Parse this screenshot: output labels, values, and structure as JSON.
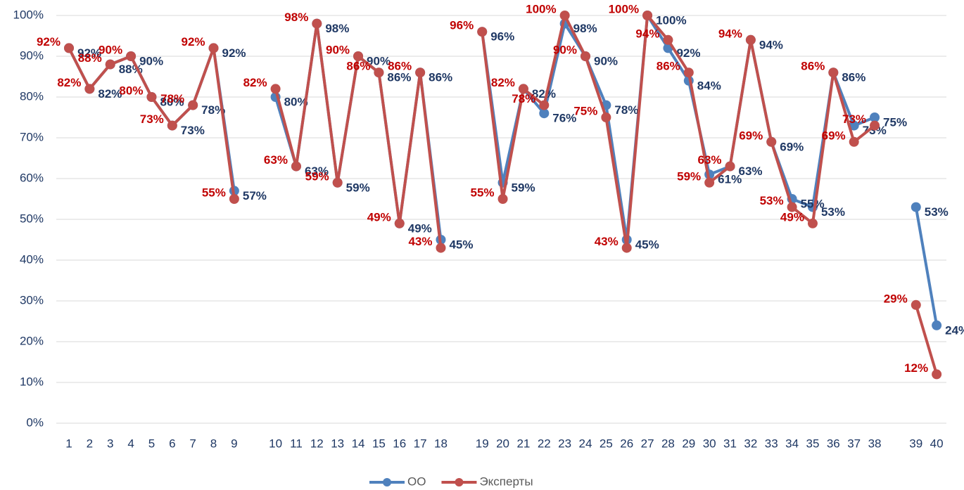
{
  "chart_data": {
    "type": "line",
    "categories": [
      "1",
      "2",
      "3",
      "4",
      "5",
      "6",
      "7",
      "8",
      "9",
      null,
      "10",
      "11",
      "12",
      "13",
      "14",
      "15",
      "16",
      "17",
      "18",
      null,
      "19",
      "20",
      "21",
      "22",
      "23",
      "24",
      "25",
      "26",
      "27",
      "28",
      "29",
      "30",
      "31",
      "32",
      "33",
      "34",
      "35",
      "36",
      "37",
      "38",
      null,
      "39",
      "40"
    ],
    "series": [
      {
        "name": "ОО",
        "color": "#4f81bd",
        "label_color": "#1f3864",
        "values": [
          92,
          82,
          88,
          90,
          80,
          73,
          78,
          92,
          57,
          null,
          80,
          63,
          98,
          59,
          90,
          86,
          49,
          86,
          45,
          null,
          96,
          59,
          82,
          76,
          98,
          90,
          78,
          45,
          100,
          92,
          84,
          61,
          63,
          94,
          69,
          55,
          53,
          86,
          73,
          75,
          null,
          53,
          24
        ],
        "value_labels": [
          "92%",
          "82%",
          "88%",
          "90%",
          "80%",
          "73%",
          "78%",
          "92%",
          "57%",
          null,
          "80%",
          "63%",
          "98%",
          "59%",
          "90%",
          "86%",
          "49%",
          "86%",
          "45%",
          null,
          "96%",
          "59%",
          "82%",
          "76%",
          "98%",
          "90%",
          "78%",
          "45%",
          "100%",
          "92%",
          "84%",
          "61%",
          "63%",
          "94%",
          "69%",
          "55%",
          "53%",
          "86%",
          "73%",
          "75%",
          null,
          "53%",
          "24%"
        ]
      },
      {
        "name": "Эксперты",
        "color": "#c0504d",
        "label_color": "#c00000",
        "values": [
          92,
          82,
          88,
          90,
          80,
          73,
          78,
          92,
          55,
          null,
          82,
          63,
          98,
          59,
          90,
          86,
          49,
          86,
          43,
          null,
          96,
          55,
          82,
          78,
          100,
          90,
          75,
          43,
          100,
          94,
          86,
          59,
          63,
          94,
          69,
          53,
          49,
          86,
          69,
          73,
          null,
          29,
          12
        ],
        "value_labels": [
          "92%",
          "82%",
          "88%",
          "90%",
          "80%",
          "73%",
          "78%",
          "92%",
          "55%",
          null,
          "82%",
          "63%",
          "98%",
          "59%",
          "90%",
          "86%",
          "49%",
          "86%",
          "43%",
          null,
          "96%",
          "55%",
          "82%",
          "78%",
          "100%",
          "90%",
          "75%",
          "43%",
          "100%",
          "94%",
          "86%",
          "59%",
          "63%",
          "94%",
          "69%",
          "53%",
          "49%",
          "86%",
          "69%",
          "73%",
          null,
          "29%",
          "12%"
        ]
      }
    ],
    "ylim": [
      0,
      100
    ],
    "yticks": [
      {
        "value": 0,
        "label": "0%"
      },
      {
        "value": 10,
        "label": "10%"
      },
      {
        "value": 20,
        "label": "20%"
      },
      {
        "value": 30,
        "label": "30%"
      },
      {
        "value": 40,
        "label": "40%"
      },
      {
        "value": 50,
        "label": "50%"
      },
      {
        "value": 60,
        "label": "60%"
      },
      {
        "value": 70,
        "label": "70%"
      },
      {
        "value": 80,
        "label": "80%"
      },
      {
        "value": 90,
        "label": "90%"
      },
      {
        "value": 100,
        "label": "100%"
      }
    ],
    "grid": true,
    "legend": "bottom"
  }
}
